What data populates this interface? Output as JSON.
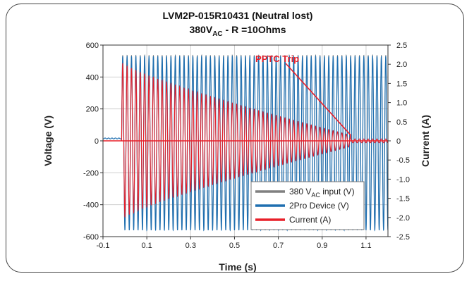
{
  "chart_data": {
    "type": "line",
    "title_line1": "LVM2P-015R10431 (Neutral lost)",
    "title_line2_main": "380V",
    "title_line2_sub": "AC",
    "title_line2_rest": " - R =10Ohms",
    "xlabel": "Time (s)",
    "ylabel_left": "Voltage (V)",
    "ylabel_right": "Current (A)",
    "xlim": [
      -0.1,
      1.2
    ],
    "ylim_left": [
      -600,
      600
    ],
    "ylim_right": [
      -2.5,
      2.5
    ],
    "x_ticks": [
      "-0.1",
      "0.1",
      "0.3",
      "0.5",
      "0.7",
      "0.9",
      "1.1"
    ],
    "x_tick_values": [
      -0.1,
      0.1,
      0.3,
      0.5,
      0.7,
      0.9,
      1.1
    ],
    "y_left_ticks": [
      "600",
      "400",
      "200",
      "0",
      "-200",
      "-400",
      "-600"
    ],
    "y_left_tick_values": [
      600,
      400,
      200,
      0,
      -200,
      -400,
      -600
    ],
    "y_right_ticks": [
      "2.5",
      "2.0",
      "1.5",
      "1.0",
      "0.5",
      "0",
      "-0.5",
      "-1.0",
      "-1.5",
      "-2.0",
      "-2.5"
    ],
    "y_right_tick_values": [
      2.5,
      2.0,
      1.5,
      1.0,
      0.5,
      0,
      -0.5,
      -1.0,
      -1.5,
      -2.0,
      -2.5
    ],
    "grid": true,
    "legend_position": "bottom-right",
    "legend": [
      {
        "main": "380 V",
        "sub": "AC",
        "rest": " input (V)",
        "color": "#808080"
      },
      {
        "main": "2Pro Device (V)",
        "sub": "",
        "rest": "",
        "color": "#1f6fb0"
      },
      {
        "main": "Current (A)",
        "sub": "",
        "rest": "",
        "color": "#e8202a"
      }
    ],
    "annotation": {
      "text": "PPTC Trip",
      "color": "#e8202a",
      "arrow_from": [
        0.75,
        2.6
      ],
      "arrow_to": [
        1.03,
        0.15
      ]
    },
    "series": [
      {
        "name": "380 VAC input (V)",
        "color": "#808080",
        "axis": "left",
        "frequency_hz": 50,
        "onset_s": -0.015,
        "pre_level": 0,
        "amplitude": 537
      },
      {
        "name": "2Pro Device (V)",
        "color": "#1f6fb0",
        "axis": "left",
        "frequency_hz": 50,
        "onset_s": -0.015,
        "pre_level": 15,
        "amplitude_pos": 530,
        "amplitude_neg": -560
      },
      {
        "name": "Current (A)",
        "color": "#e8202a",
        "axis": "right",
        "frequency_hz": 50,
        "onset_s": -0.015,
        "peak_start": 2.05,
        "peak_at_trip": 0.15,
        "trip_time_s": 1.03,
        "residual": 0.05
      }
    ]
  }
}
